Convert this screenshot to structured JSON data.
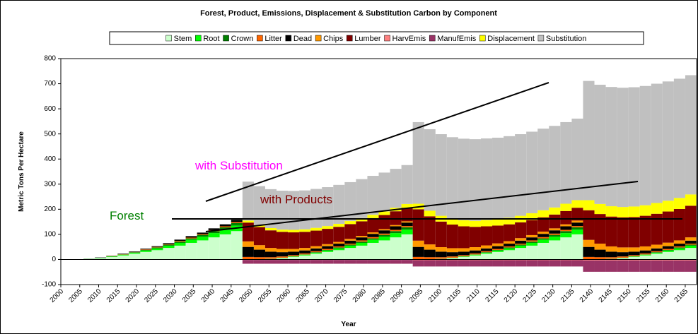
{
  "chart_data": {
    "type": "stacked-bar",
    "title": "Forest, Product, Emissions, Displacement & Substitution Carbon by Component",
    "x_label": "Year",
    "y_label": "Metric Tons Per Hectare",
    "legend": "top",
    "grid": false,
    "xlim": [
      2000,
      2168
    ],
    "ylim": [
      -100,
      800
    ],
    "yticks": [
      -100,
      0,
      100,
      200,
      300,
      400,
      500,
      600,
      700,
      800
    ],
    "xticks": [
      2000,
      2005,
      2010,
      2015,
      2020,
      2025,
      2030,
      2035,
      2040,
      2045,
      2050,
      2055,
      2060,
      2065,
      2070,
      2075,
      2080,
      2085,
      2090,
      2095,
      2100,
      2105,
      2110,
      2115,
      2120,
      2125,
      2130,
      2135,
      2140,
      2145,
      2150,
      2155,
      2160,
      2165
    ],
    "x": [
      2000,
      2003,
      2006,
      2009,
      2012,
      2015,
      2018,
      2021,
      2024,
      2027,
      2030,
      2033,
      2036,
      2039,
      2042,
      2045,
      2048,
      2051,
      2054,
      2057,
      2060,
      2063,
      2066,
      2069,
      2072,
      2075,
      2078,
      2081,
      2084,
      2087,
      2090,
      2093,
      2096,
      2099,
      2102,
      2105,
      2108,
      2111,
      2114,
      2117,
      2120,
      2123,
      2126,
      2129,
      2132,
      2135,
      2138,
      2141,
      2144,
      2147,
      2150,
      2153,
      2156,
      2159,
      2162,
      2165
    ],
    "series": [
      {
        "name": "Stem",
        "color": "#ccffcc",
        "values": [
          0,
          1,
          2,
          5,
          10,
          16,
          23,
          30,
          37,
          46,
          55,
          66,
          76,
          88,
          100,
          113,
          0,
          1,
          2,
          5,
          10,
          16,
          23,
          30,
          37,
          46,
          55,
          66,
          76,
          88,
          100,
          0,
          1,
          2,
          5,
          10,
          16,
          23,
          30,
          37,
          46,
          55,
          66,
          76,
          88,
          100,
          0,
          1,
          2,
          5,
          10,
          16,
          23,
          30,
          37,
          46
        ]
      },
      {
        "name": "Root",
        "color": "#00ff00",
        "values": [
          0,
          0,
          0,
          1,
          2,
          3,
          4,
          6,
          7,
          9,
          11,
          13,
          15,
          17,
          19,
          22,
          0,
          0,
          0,
          1,
          2,
          3,
          4,
          6,
          7,
          9,
          11,
          13,
          15,
          17,
          19,
          0,
          0,
          0,
          1,
          2,
          3,
          4,
          6,
          7,
          9,
          11,
          13,
          15,
          17,
          19,
          0,
          0,
          0,
          1,
          2,
          3,
          4,
          6,
          7,
          9
        ]
      },
      {
        "name": "Crown",
        "color": "#008000",
        "values": [
          0,
          0,
          1,
          1,
          1,
          1,
          2,
          2,
          4,
          4,
          5,
          5,
          7,
          8,
          9,
          10,
          0,
          0,
          1,
          1,
          1,
          1,
          2,
          2,
          4,
          4,
          5,
          5,
          7,
          8,
          9,
          0,
          0,
          1,
          1,
          1,
          1,
          2,
          2,
          4,
          4,
          5,
          5,
          7,
          8,
          9,
          0,
          0,
          1,
          1,
          1,
          1,
          2,
          2,
          4,
          4
        ]
      },
      {
        "name": "Litter",
        "color": "#ff6600",
        "values": [
          0,
          0,
          0,
          0,
          1,
          1,
          1,
          2,
          2,
          2,
          3,
          3,
          3,
          4,
          4,
          4,
          10,
          8,
          6,
          5,
          4,
          4,
          4,
          4,
          4,
          4,
          5,
          5,
          5,
          5,
          5,
          10,
          8,
          6,
          5,
          4,
          4,
          4,
          4,
          4,
          4,
          5,
          5,
          5,
          5,
          5,
          10,
          8,
          6,
          5,
          4,
          4,
          4,
          4,
          4,
          4
        ]
      },
      {
        "name": "Dead",
        "color": "#000000",
        "values": [
          0,
          0,
          0,
          1,
          1,
          2,
          2,
          3,
          3,
          4,
          5,
          6,
          6,
          7,
          8,
          9,
          40,
          30,
          22,
          17,
          14,
          12,
          11,
          11,
          11,
          12,
          12,
          13,
          13,
          14,
          14,
          40,
          30,
          22,
          17,
          14,
          12,
          11,
          11,
          11,
          12,
          12,
          13,
          13,
          14,
          14,
          40,
          30,
          22,
          17,
          14,
          12,
          11,
          11,
          11,
          12
        ]
      },
      {
        "name": "Chips",
        "color": "#ff9900",
        "values": [
          0,
          0,
          0,
          0,
          0,
          0,
          0,
          0,
          0,
          0,
          0,
          0,
          0,
          0,
          0,
          0,
          22,
          18,
          15,
          13,
          11,
          10,
          9,
          8,
          7,
          7,
          6,
          6,
          5,
          5,
          5,
          25,
          21,
          18,
          16,
          14,
          13,
          12,
          11,
          10,
          10,
          9,
          9,
          8,
          8,
          8,
          28,
          24,
          21,
          19,
          17,
          16,
          15,
          14,
          13,
          13
        ]
      },
      {
        "name": "Lumber",
        "color": "#800000",
        "values": [
          0,
          0,
          0,
          0,
          0,
          0,
          0,
          0,
          0,
          0,
          0,
          0,
          0,
          0,
          0,
          0,
          75,
          72,
          70,
          68,
          66,
          64,
          62,
          61,
          60,
          59,
          58,
          57,
          56,
          55,
          54,
          125,
          112,
          102,
          94,
          87,
          81,
          76,
          71,
          67,
          63,
          60,
          57,
          55,
          53,
          51,
          118,
          118,
          119,
          120,
          121,
          122,
          123,
          124,
          125,
          126
        ]
      },
      {
        "name": "HarvEmis",
        "color": "#ff8080",
        "values": [
          0,
          0,
          0,
          0,
          0,
          0,
          0,
          0,
          0,
          0,
          0,
          0,
          0,
          0,
          0,
          0,
          -2,
          -2,
          -2,
          -2,
          -2,
          -2,
          -2,
          -2,
          -2,
          -2,
          -2,
          -2,
          -2,
          -2,
          -2,
          -3,
          -3,
          -3,
          -3,
          -3,
          -3,
          -3,
          -3,
          -3,
          -3,
          -3,
          -3,
          -3,
          -3,
          -3,
          -4,
          -4,
          -4,
          -4,
          -4,
          -4,
          -4,
          -4,
          -4,
          -4
        ]
      },
      {
        "name": "ManufEmis",
        "color": "#993366",
        "values": [
          0,
          0,
          0,
          0,
          0,
          0,
          0,
          0,
          0,
          0,
          0,
          0,
          0,
          0,
          0,
          0,
          -15,
          -15,
          -15,
          -15,
          -15,
          -15,
          -15,
          -15,
          -15,
          -15,
          -15,
          -15,
          -15,
          -15,
          -15,
          -25,
          -25,
          -25,
          -25,
          -25,
          -25,
          -25,
          -25,
          -25,
          -25,
          -25,
          -25,
          -25,
          -25,
          -25,
          -45,
          -45,
          -45,
          -45,
          -45,
          -45,
          -45,
          -45,
          -45,
          -45
        ]
      },
      {
        "name": "Displacement",
        "color": "#ffff00",
        "values": [
          0,
          0,
          0,
          0,
          0,
          0,
          0,
          0,
          0,
          0,
          0,
          0,
          0,
          0,
          0,
          0,
          8,
          8,
          9,
          9,
          10,
          10,
          11,
          11,
          12,
          12,
          13,
          13,
          14,
          14,
          15,
          22,
          22,
          23,
          23,
          24,
          24,
          25,
          25,
          26,
          26,
          27,
          28,
          28,
          29,
          30,
          40,
          40,
          41,
          41,
          42,
          42,
          43,
          43,
          44,
          45
        ]
      },
      {
        "name": "Substitution",
        "color": "#c0c0c0",
        "values": [
          0,
          0,
          0,
          0,
          0,
          0,
          0,
          0,
          0,
          0,
          0,
          0,
          0,
          0,
          0,
          0,
          155,
          155,
          155,
          155,
          155,
          155,
          155,
          155,
          155,
          155,
          155,
          155,
          155,
          155,
          155,
          325,
          325,
          325,
          325,
          325,
          325,
          325,
          325,
          325,
          325,
          325,
          325,
          325,
          325,
          325,
          475,
          475,
          475,
          475,
          475,
          475,
          475,
          475,
          475,
          475
        ]
      }
    ],
    "annotations": [
      {
        "text": "with Substitution",
        "color": "#ff00ff"
      },
      {
        "text": "with Products",
        "color": "#800000"
      },
      {
        "text": "Forest",
        "color": "#008000"
      }
    ]
  }
}
